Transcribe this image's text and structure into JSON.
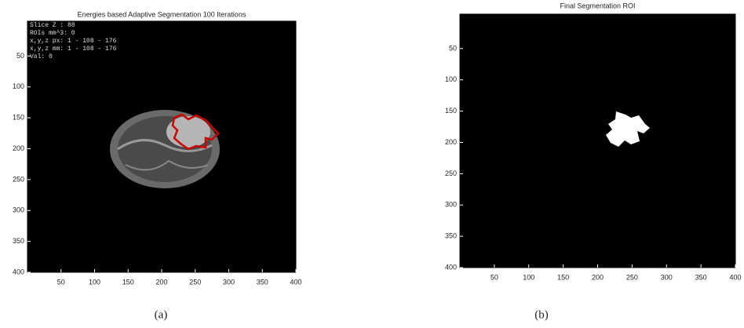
{
  "chart_data": [
    {
      "type": "image",
      "title": "Energies based Adaptive Segmentation 100 Iterations",
      "annotations": [
        "Slice Z : 88",
        "ROIs mm^3: 0",
        "x,y,z px: 1 - 108 - 176",
        "x,y,z mm: 1 - 108 - 176",
        "Val: 0"
      ],
      "xlim": [
        0,
        400
      ],
      "ylim": [
        0,
        400
      ],
      "xticks": [
        50,
        100,
        150,
        200,
        250,
        300,
        350,
        400
      ],
      "yticks": [
        50,
        100,
        150,
        200,
        250,
        300,
        350,
        400
      ],
      "caption": "(a)"
    },
    {
      "type": "image",
      "title": "Final Segmentation ROI",
      "xlim": [
        0,
        400
      ],
      "ylim": [
        0,
        400
      ],
      "xticks": [
        50,
        100,
        150,
        200,
        250,
        300,
        350,
        400
      ],
      "yticks": [
        50,
        100,
        150,
        200,
        250,
        300,
        350,
        400
      ],
      "caption": "(b)"
    }
  ]
}
